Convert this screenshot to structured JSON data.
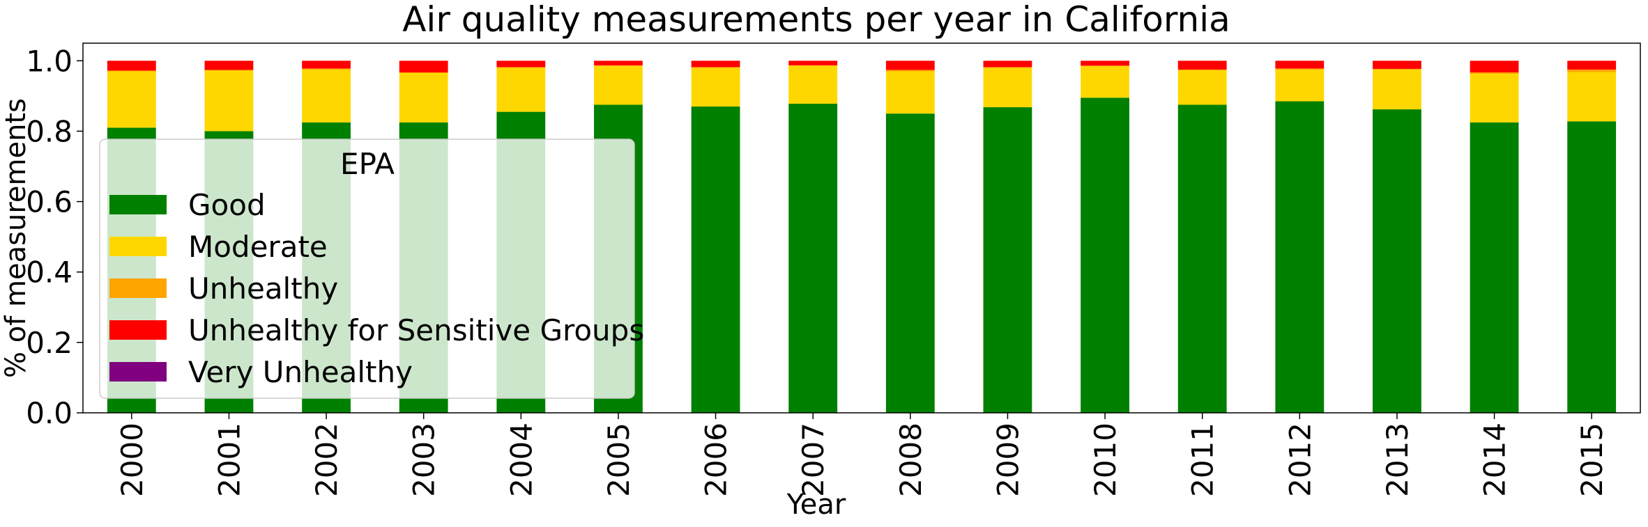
{
  "chart_data": {
    "type": "bar",
    "stacked": true,
    "title": "Air quality measurements per year in California",
    "xlabel": "Year",
    "ylabel": "% of measurements",
    "ylim": [
      0,
      1.05
    ],
    "yticks": [
      "0.0",
      "0.2",
      "0.4",
      "0.6",
      "0.8",
      "1.0"
    ],
    "categories": [
      "2000",
      "2001",
      "2002",
      "2003",
      "2004",
      "2005",
      "2006",
      "2007",
      "2008",
      "2009",
      "2010",
      "2011",
      "2012",
      "2013",
      "2014",
      "2015"
    ],
    "series": [
      {
        "name": "Good",
        "color": "#008000",
        "values": [
          0.81,
          0.8,
          0.825,
          0.825,
          0.855,
          0.875,
          0.87,
          0.878,
          0.85,
          0.868,
          0.895,
          0.875,
          0.885,
          0.862,
          0.825,
          0.828
        ]
      },
      {
        "name": "Moderate",
        "color": "#FFD700",
        "values": [
          0.16,
          0.172,
          0.15,
          0.14,
          0.125,
          0.11,
          0.11,
          0.108,
          0.12,
          0.112,
          0.09,
          0.098,
          0.09,
          0.113,
          0.138,
          0.14
        ]
      },
      {
        "name": "Unhealthy",
        "color": "#FFA500",
        "values": [
          0.002,
          0.002,
          0.003,
          0.002,
          0.002,
          0.002,
          0.002,
          0.001,
          0.004,
          0.002,
          0.001,
          0.002,
          0.003,
          0.002,
          0.004,
          0.007
        ]
      },
      {
        "name": "Unhealthy for Sensitive Groups",
        "color": "#FF0000",
        "values": [
          0.028,
          0.026,
          0.022,
          0.033,
          0.018,
          0.013,
          0.018,
          0.013,
          0.026,
          0.018,
          0.014,
          0.025,
          0.022,
          0.023,
          0.033,
          0.025
        ]
      },
      {
        "name": "Very Unhealthy",
        "color": "#800080",
        "values": [
          0,
          0,
          0,
          0,
          0,
          0,
          0,
          0,
          0,
          0,
          0,
          0,
          0,
          0,
          0,
          0
        ]
      }
    ],
    "legend": {
      "title": "EPA",
      "position": "center-left"
    },
    "grid": false
  }
}
